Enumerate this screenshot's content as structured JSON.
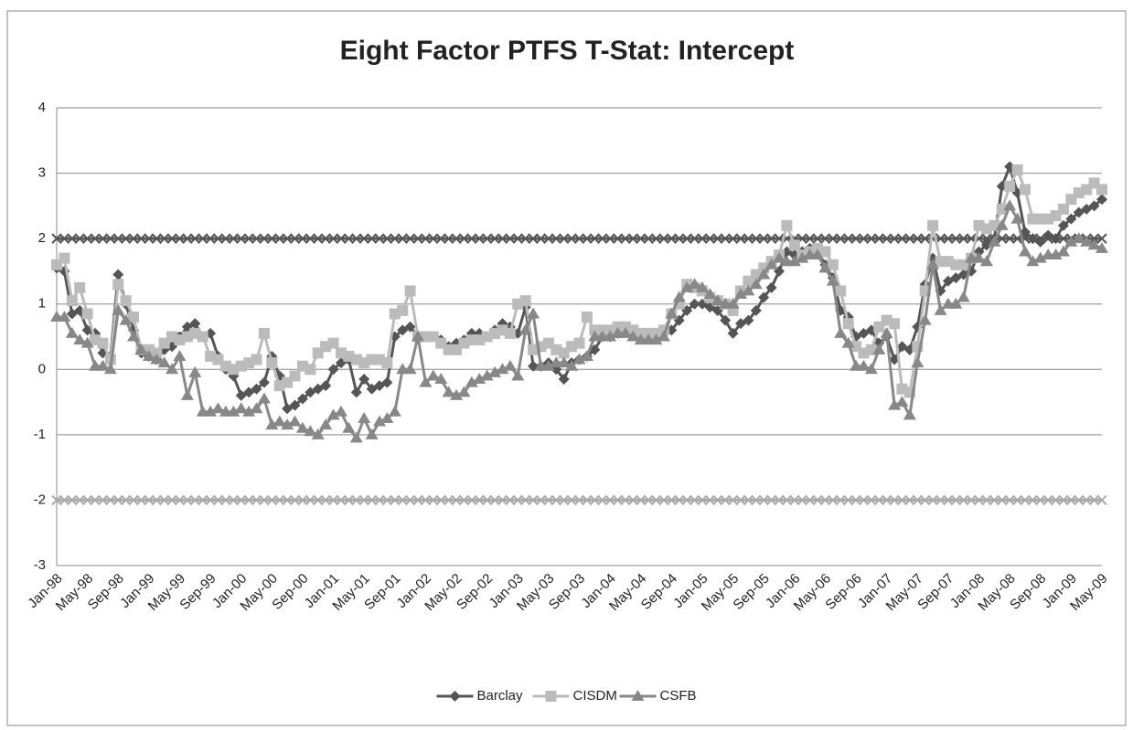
{
  "chart_data": {
    "type": "line",
    "title": "Eight Factor PTFS T-Stat: Intercept",
    "categories": [
      "Jan-98",
      null,
      null,
      null,
      "May-98",
      null,
      null,
      null,
      "Sep-98",
      null,
      null,
      null,
      "Jan-99",
      null,
      null,
      null,
      "May-99",
      null,
      null,
      null,
      "Sep-99",
      null,
      null,
      null,
      "Jan-00",
      null,
      null,
      null,
      "May-00",
      null,
      null,
      null,
      "Sep-00",
      null,
      null,
      null,
      "Jan-01",
      null,
      null,
      null,
      "May-01",
      null,
      null,
      null,
      "Sep-01",
      null,
      null,
      null,
      "Jan-02",
      null,
      null,
      null,
      "May-02",
      null,
      null,
      null,
      "Sep-02",
      null,
      null,
      null,
      "Jan-03",
      null,
      null,
      null,
      "May-03",
      null,
      null,
      null,
      "Sep-03",
      null,
      null,
      null,
      "Jan-04",
      null,
      null,
      null,
      "May-04",
      null,
      null,
      null,
      "Sep-04",
      null,
      null,
      null,
      "Jan-05",
      null,
      null,
      null,
      "May-05",
      null,
      null,
      null,
      "Sep-05",
      null,
      null,
      null,
      "Jan-06",
      null,
      null,
      null,
      "May-06",
      null,
      null,
      null,
      "Sep-06",
      null,
      null,
      null,
      "Jan-07",
      null,
      null,
      null,
      "May-07",
      null,
      null,
      null,
      "Sep-07",
      null,
      null,
      null,
      "Jan-08",
      null,
      null,
      null,
      "May-08",
      null,
      null,
      null,
      "Sep-08",
      null,
      null,
      null,
      "Jan-09",
      null,
      null,
      null,
      "May-09"
    ],
    "series": [
      {
        "name": "Barclay",
        "color": "#555555",
        "marker": "diamond",
        "values": [
          1.55,
          1.5,
          0.85,
          0.9,
          0.6,
          0.55,
          0.25,
          0.2,
          1.45,
          1.0,
          0.6,
          0.25,
          0.2,
          0.15,
          0.3,
          0.35,
          0.5,
          0.65,
          0.7,
          0.5,
          0.55,
          0.2,
          0.0,
          -0.1,
          -0.4,
          -0.35,
          -0.3,
          -0.2,
          0.2,
          -0.1,
          -0.6,
          -0.55,
          -0.45,
          -0.35,
          -0.3,
          -0.25,
          0.0,
          0.1,
          0.15,
          -0.35,
          -0.15,
          -0.3,
          -0.25,
          -0.2,
          0.5,
          0.6,
          0.65,
          0.5,
          0.5,
          0.5,
          0.45,
          0.35,
          0.4,
          0.45,
          0.55,
          0.55,
          0.5,
          0.6,
          0.7,
          0.65,
          0.55,
          0.95,
          0.05,
          0.05,
          0.1,
          0.0,
          -0.15,
          0.1,
          0.15,
          0.2,
          0.3,
          0.5,
          0.5,
          0.55,
          0.6,
          0.6,
          0.55,
          0.5,
          0.5,
          0.55,
          0.6,
          0.75,
          0.9,
          1.0,
          1.0,
          0.95,
          0.9,
          0.75,
          0.55,
          0.7,
          0.75,
          0.9,
          1.1,
          1.25,
          1.5,
          1.8,
          1.75,
          1.8,
          1.85,
          1.8,
          1.6,
          1.4,
          0.9,
          0.8,
          0.5,
          0.55,
          0.6,
          0.4,
          0.5,
          0.15,
          0.35,
          0.3,
          0.65,
          1.3,
          1.7,
          1.2,
          1.35,
          1.4,
          1.45,
          1.5,
          1.8,
          1.9,
          2.0,
          2.8,
          3.1,
          2.7,
          2.1,
          2.0,
          1.95,
          2.05,
          2.0,
          2.2,
          2.3,
          2.4,
          2.45,
          2.5,
          2.6
        ]
      },
      {
        "name": "CISDM",
        "color": "#bbbbbb",
        "marker": "square",
        "values": [
          1.6,
          1.7,
          1.05,
          1.25,
          0.85,
          0.45,
          0.4,
          0.15,
          1.3,
          1.05,
          0.8,
          0.3,
          0.3,
          0.25,
          0.4,
          0.5,
          0.45,
          0.5,
          0.55,
          0.5,
          0.2,
          0.15,
          0.05,
          0.0,
          0.05,
          0.1,
          0.15,
          0.55,
          0.1,
          -0.25,
          -0.2,
          -0.1,
          0.05,
          0.0,
          0.25,
          0.35,
          0.4,
          0.25,
          0.2,
          0.15,
          0.1,
          0.15,
          0.15,
          0.1,
          0.85,
          0.9,
          1.2,
          0.5,
          0.5,
          0.5,
          0.4,
          0.3,
          0.3,
          0.4,
          0.45,
          0.45,
          0.5,
          0.55,
          0.6,
          0.55,
          1.0,
          1.05,
          0.3,
          0.35,
          0.4,
          0.3,
          0.25,
          0.35,
          0.4,
          0.8,
          0.6,
          0.6,
          0.6,
          0.65,
          0.65,
          0.6,
          0.55,
          0.55,
          0.55,
          0.6,
          0.85,
          1.0,
          1.3,
          1.25,
          1.2,
          1.1,
          1.05,
          1.0,
          0.9,
          1.2,
          1.35,
          1.45,
          1.55,
          1.65,
          1.75,
          2.2,
          1.9,
          1.75,
          1.8,
          1.85,
          1.8,
          1.6,
          1.2,
          0.7,
          0.35,
          0.25,
          0.3,
          0.65,
          0.75,
          0.7,
          -0.3,
          -0.35,
          0.35,
          1.2,
          2.2,
          1.65,
          1.65,
          1.6,
          1.6,
          1.7,
          2.2,
          2.15,
          2.2,
          2.45,
          2.8,
          3.05,
          2.75,
          2.3,
          2.3,
          2.3,
          2.35,
          2.45,
          2.6,
          2.7,
          2.75,
          2.85,
          2.75
        ]
      },
      {
        "name": "CSFB",
        "color": "#888888",
        "marker": "triangle",
        "values": [
          0.8,
          0.8,
          0.55,
          0.45,
          0.4,
          0.05,
          0.05,
          0.0,
          0.9,
          0.75,
          0.5,
          0.3,
          0.2,
          0.15,
          0.1,
          0.0,
          0.2,
          -0.4,
          -0.05,
          -0.65,
          -0.65,
          -0.6,
          -0.65,
          -0.65,
          -0.6,
          -0.65,
          -0.6,
          -0.45,
          -0.85,
          -0.8,
          -0.85,
          -0.8,
          -0.9,
          -0.95,
          -1.0,
          -0.85,
          -0.7,
          -0.65,
          -0.9,
          -1.05,
          -0.75,
          -1.0,
          -0.8,
          -0.75,
          -0.65,
          0.0,
          0.0,
          0.5,
          -0.2,
          -0.1,
          -0.15,
          -0.35,
          -0.4,
          -0.35,
          -0.2,
          -0.15,
          -0.1,
          -0.05,
          0.0,
          0.05,
          -0.1,
          0.6,
          0.85,
          0.05,
          0.05,
          0.1,
          0.1,
          0.05,
          0.15,
          0.2,
          0.5,
          0.5,
          0.5,
          0.55,
          0.55,
          0.5,
          0.45,
          0.45,
          0.45,
          0.5,
          0.85,
          1.1,
          1.25,
          1.3,
          1.25,
          1.15,
          1.05,
          1.0,
          1.0,
          1.15,
          1.2,
          1.3,
          1.45,
          1.6,
          1.7,
          1.65,
          1.65,
          1.7,
          1.75,
          1.75,
          1.55,
          1.35,
          0.55,
          0.4,
          0.05,
          0.05,
          0.0,
          0.3,
          0.55,
          -0.55,
          -0.5,
          -0.7,
          0.1,
          0.75,
          1.6,
          0.9,
          1.0,
          1.0,
          1.1,
          1.7,
          1.7,
          1.65,
          1.95,
          2.2,
          2.5,
          2.3,
          1.8,
          1.65,
          1.7,
          1.75,
          1.75,
          1.8,
          1.95,
          2.0,
          1.95,
          1.9,
          1.85
        ]
      }
    ],
    "reference_lines": [
      {
        "value": 2,
        "color": "#555555"
      },
      {
        "value": -2,
        "color": "#aaaaaa"
      }
    ],
    "ylim": [
      -3,
      4
    ],
    "yticks": [
      -3,
      -2,
      -1,
      0,
      1,
      2,
      3,
      4
    ],
    "grid": true,
    "legend": "bottom"
  }
}
